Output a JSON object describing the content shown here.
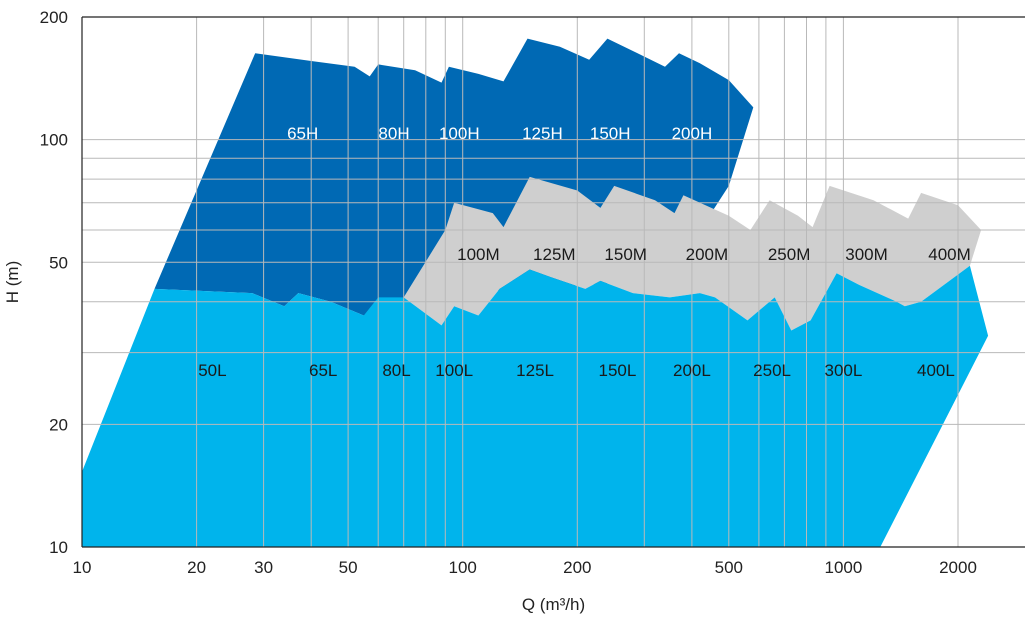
{
  "chart_data": {
    "type": "area",
    "title": "",
    "xlabel": "Q (m³/h)",
    "ylabel": "H (m)",
    "x_scale": "log",
    "y_scale": "log",
    "xlim": [
      10,
      3000
    ],
    "ylim": [
      10,
      200
    ],
    "grid": true,
    "x_ticks": [
      {
        "value": 10,
        "label": "10"
      },
      {
        "value": 20,
        "label": "20"
      },
      {
        "value": 30,
        "label": "30"
      },
      {
        "value": 50,
        "label": "50"
      },
      {
        "value": 100,
        "label": "100"
      },
      {
        "value": 200,
        "label": "200"
      },
      {
        "value": 500,
        "label": "500"
      },
      {
        "value": 1000,
        "label": "1000"
      },
      {
        "value": 2000,
        "label": "2000"
      }
    ],
    "y_ticks": [
      {
        "value": 10,
        "label": "10"
      },
      {
        "value": 20,
        "label": "20"
      },
      {
        "value": 50,
        "label": "50"
      },
      {
        "value": 100,
        "label": "100"
      },
      {
        "value": 200,
        "label": "200"
      }
    ],
    "x_grid": [
      20,
      30,
      40,
      50,
      60,
      70,
      80,
      90,
      100,
      200,
      300,
      400,
      500,
      600,
      700,
      800,
      900,
      1000,
      2000
    ],
    "y_grid": [
      20,
      30,
      40,
      50,
      60,
      70,
      80,
      90,
      100
    ],
    "series": [
      {
        "name": "H",
        "color": "#0069b4",
        "labels": [
          {
            "text": "65H",
            "x": 38,
            "y": 103
          },
          {
            "text": "80H",
            "x": 66,
            "y": 103
          },
          {
            "text": "100H",
            "x": 98,
            "y": 103
          },
          {
            "text": "125H",
            "x": 162,
            "y": 103
          },
          {
            "text": "150H",
            "x": 244,
            "y": 103
          },
          {
            "text": "200H",
            "x": 400,
            "y": 103
          }
        ],
        "outline": [
          [
            15.5,
            43
          ],
          [
            28.5,
            163
          ],
          [
            40,
            156
          ],
          [
            52,
            151
          ],
          [
            57,
            143
          ],
          [
            60,
            153
          ],
          [
            75,
            148
          ],
          [
            88,
            138
          ],
          [
            92,
            151
          ],
          [
            110,
            145
          ],
          [
            128,
            139
          ],
          [
            148,
            177
          ],
          [
            180,
            169
          ],
          [
            215,
            157
          ],
          [
            240,
            177
          ],
          [
            280,
            165
          ],
          [
            340,
            151
          ],
          [
            370,
            163
          ],
          [
            420,
            154
          ],
          [
            500,
            140
          ],
          [
            580,
            120
          ],
          [
            500,
            77
          ],
          [
            440,
            64
          ],
          [
            405,
            45
          ],
          [
            350,
            45
          ],
          [
            300,
            45
          ],
          [
            70,
            41
          ],
          [
            60,
            37
          ],
          [
            55,
            37
          ],
          [
            45,
            40
          ],
          [
            37,
            42
          ],
          [
            34,
            39
          ],
          [
            28,
            42
          ],
          [
            15.5,
            43
          ]
        ]
      },
      {
        "name": "M",
        "color": "#cfcfcf",
        "labels": [
          {
            "text": "100M",
            "x": 110,
            "y": 52
          },
          {
            "text": "125M",
            "x": 174,
            "y": 52
          },
          {
            "text": "150M",
            "x": 268,
            "y": 52
          },
          {
            "text": "200M",
            "x": 438,
            "y": 52
          },
          {
            "text": "250M",
            "x": 720,
            "y": 52
          },
          {
            "text": "300M",
            "x": 1150,
            "y": 52
          },
          {
            "text": "400M",
            "x": 1900,
            "y": 52
          }
        ],
        "outline": [
          [
            70,
            41
          ],
          [
            90,
            60
          ],
          [
            95,
            70
          ],
          [
            120,
            66
          ],
          [
            128,
            61
          ],
          [
            150,
            81
          ],
          [
            200,
            75
          ],
          [
            230,
            68
          ],
          [
            250,
            77
          ],
          [
            320,
            71
          ],
          [
            360,
            66
          ],
          [
            380,
            73
          ],
          [
            500,
            65
          ],
          [
            570,
            60
          ],
          [
            640,
            71
          ],
          [
            760,
            65
          ],
          [
            830,
            61
          ],
          [
            920,
            77
          ],
          [
            1200,
            71
          ],
          [
            1480,
            64
          ],
          [
            1600,
            74
          ],
          [
            2000,
            69
          ],
          [
            2300,
            60
          ],
          [
            2150,
            49
          ],
          [
            1600,
            40
          ],
          [
            1450,
            39
          ],
          [
            1380,
            40
          ],
          [
            1100,
            44
          ],
          [
            960,
            47
          ],
          [
            820,
            36
          ],
          [
            730,
            34
          ],
          [
            660,
            41
          ],
          [
            560,
            36
          ],
          [
            460,
            41
          ],
          [
            420,
            42
          ],
          [
            350,
            41
          ],
          [
            280,
            42
          ],
          [
            230,
            45
          ],
          [
            210,
            43
          ],
          [
            170,
            46
          ],
          [
            150,
            48
          ],
          [
            125,
            43
          ],
          [
            110,
            37
          ],
          [
            95,
            39
          ],
          [
            88,
            35
          ],
          [
            70,
            41
          ]
        ]
      },
      {
        "name": "L",
        "color": "#00b4ec",
        "labels": [
          {
            "text": "50L",
            "x": 22,
            "y": 27
          },
          {
            "text": "65L",
            "x": 43,
            "y": 27
          },
          {
            "text": "80L",
            "x": 67,
            "y": 27
          },
          {
            "text": "100L",
            "x": 95,
            "y": 27
          },
          {
            "text": "125L",
            "x": 155,
            "y": 27
          },
          {
            "text": "150L",
            "x": 255,
            "y": 27
          },
          {
            "text": "200L",
            "x": 400,
            "y": 27
          },
          {
            "text": "250L",
            "x": 650,
            "y": 27
          },
          {
            "text": "300L",
            "x": 1000,
            "y": 27
          },
          {
            "text": "400L",
            "x": 1750,
            "y": 27
          }
        ],
        "outline": [
          [
            10,
            15.3
          ],
          [
            15.5,
            43
          ],
          [
            28,
            42
          ],
          [
            34,
            39
          ],
          [
            37,
            42
          ],
          [
            45,
            40
          ],
          [
            55,
            37
          ],
          [
            60,
            41
          ],
          [
            70,
            41
          ],
          [
            88,
            35
          ],
          [
            95,
            39
          ],
          [
            110,
            37
          ],
          [
            125,
            43
          ],
          [
            150,
            48
          ],
          [
            170,
            46
          ],
          [
            210,
            43
          ],
          [
            230,
            45
          ],
          [
            280,
            42
          ],
          [
            350,
            41
          ],
          [
            420,
            42
          ],
          [
            460,
            41
          ],
          [
            560,
            36
          ],
          [
            660,
            41
          ],
          [
            730,
            34
          ],
          [
            820,
            36
          ],
          [
            960,
            47
          ],
          [
            1100,
            44
          ],
          [
            1380,
            40
          ],
          [
            1450,
            39
          ],
          [
            1600,
            40
          ],
          [
            2150,
            49
          ],
          [
            2400,
            33
          ],
          [
            1250,
            10
          ],
          [
            10,
            10
          ]
        ]
      }
    ]
  }
}
